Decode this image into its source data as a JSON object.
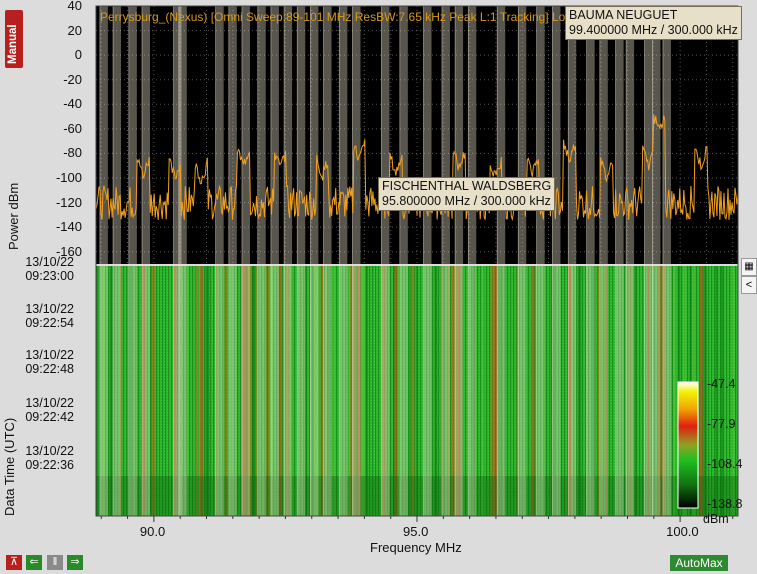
{
  "header_text": "Perrysburg_(Nexus) [Omni Sweep:89-101 MHz ResBW:7.65 kHz Peak L:1 Tracking] Lo...Raw...(dBm)",
  "mode_label": "Manual",
  "y_axis": {
    "label": "Power dBm",
    "ticks": [
      "40",
      "20",
      "0",
      "-20",
      "-40",
      "-60",
      "-80",
      "-100",
      "-120",
      "-140",
      "-160"
    ]
  },
  "time_axis": {
    "label": "Data Time (UTC)",
    "ticks": [
      {
        "date": "13/10/22",
        "time": "09:23:00"
      },
      {
        "date": "13/10/22",
        "time": "09:22:54"
      },
      {
        "date": "13/10/22",
        "time": "09:22:48"
      },
      {
        "date": "13/10/22",
        "time": "09:22:42"
      },
      {
        "date": "13/10/22",
        "time": "09:22:36"
      }
    ]
  },
  "x_axis": {
    "label": "Frequency MHz",
    "ticks": [
      "90.0",
      "95.0",
      "100.0"
    ]
  },
  "markers": [
    {
      "name": "BAUMA NEUGUET",
      "value": "99.400000 MHz / 300.000 kHz"
    },
    {
      "name": "FISCHENTHAL WALDSBERG",
      "value": "95.800000 MHz / 300.000 kHz"
    }
  ],
  "colorbar": {
    "labels": [
      "-47.4",
      "-77.9",
      "-108.4",
      "-138.8"
    ],
    "unit": "dBm"
  },
  "buttons": {
    "automax": "AutoMax",
    "collapse": "<"
  },
  "colors": {
    "trace": "#f0a020",
    "waterfall_base": "#22b022",
    "marker_band": "#e8dfc8"
  },
  "chart_data": {
    "type": "heatmap",
    "spectrum": {
      "x_range_mhz": [
        88.9,
        101.1
      ],
      "y_range_dbm": [
        -170,
        40
      ],
      "noise_floor_dbm": -120,
      "peaks": [
        {
          "freq": 89.8,
          "dbm": -98
        },
        {
          "freq": 90.4,
          "dbm": -100
        },
        {
          "freq": 90.9,
          "dbm": -102
        },
        {
          "freq": 91.7,
          "dbm": -90
        },
        {
          "freq": 92.4,
          "dbm": -92
        },
        {
          "freq": 93.2,
          "dbm": -98
        },
        {
          "freq": 93.9,
          "dbm": -85
        },
        {
          "freq": 94.6,
          "dbm": -96
        },
        {
          "freq": 95.8,
          "dbm": -92
        },
        {
          "freq": 96.5,
          "dbm": -100
        },
        {
          "freq": 97.2,
          "dbm": -95
        },
        {
          "freq": 97.9,
          "dbm": -85
        },
        {
          "freq": 98.6,
          "dbm": -100
        },
        {
          "freq": 99.4,
          "dbm": -90
        },
        {
          "freq": 99.6,
          "dbm": -62
        },
        {
          "freq": 100.4,
          "dbm": -90
        }
      ]
    },
    "marker_freqs_mhz": [
      89.05,
      89.3,
      89.6,
      89.85,
      90.45,
      90.55,
      91.25,
      91.5,
      91.75,
      92.05,
      92.3,
      92.55,
      92.8,
      93.05,
      93.3,
      93.6,
      93.85,
      94.4,
      94.75,
      95.2,
      95.55,
      95.8,
      96.05,
      96.6,
      97.0,
      97.35,
      97.65,
      97.95,
      98.3,
      98.55,
      98.85,
      99.05,
      99.4,
      99.55,
      99.75
    ],
    "colorbar_range_dbm": [
      -138.8,
      -47.4
    ]
  }
}
